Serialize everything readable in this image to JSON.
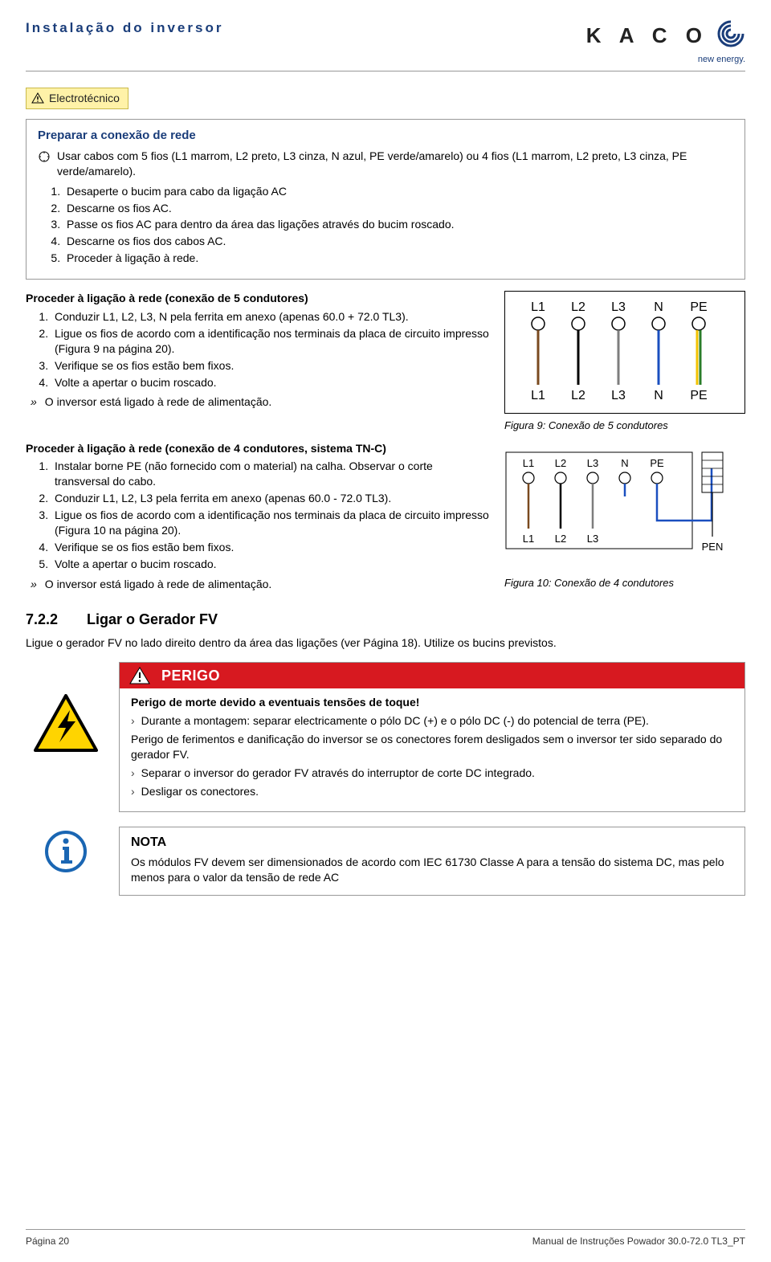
{
  "header": {
    "title": "Instalação do inversor"
  },
  "brand": {
    "name": "K A C O",
    "sub": "new energy."
  },
  "tag": "Electrotécnico",
  "block1": {
    "title": "Preparar a conexão de rede",
    "tool": "Usar cabos com 5 fios (L1 marrom, L2 preto, L3 cinza, N azul, PE verde/amarelo) ou 4 fios (L1 marrom, L2 preto, L3 cinza, PE verde/amarelo).",
    "steps": [
      "Desaperte o bucim para cabo da ligação AC",
      "Descarne os fios AC.",
      "Passe os fios AC para dentro da área das ligações através do bucim roscado.",
      "Descarne os fios dos cabos AC.",
      "Proceder à ligação à rede."
    ]
  },
  "sec5": {
    "title": "Proceder à ligação à rede (conexão de 5 condutores)",
    "steps": [
      "Conduzir L1, L2, L3, N pela ferrita em anexo (apenas 60.0 + 72.0 TL3).",
      "Ligue os fios de acordo com a identificação nos terminais da placa de circuito impresso (Figura 9 na página 20).",
      "Verifique se os fios estão bem fixos.",
      "Volte a apertar o bucim roscado."
    ],
    "result": "O inversor está ligado à rede de alimentação.",
    "diagram": {
      "top": [
        "L1",
        "L2",
        "L3",
        "N",
        "PE"
      ],
      "bottom": [
        "L1",
        "L2",
        "L3",
        "N",
        "PE"
      ],
      "colors": [
        "#7a4a1f",
        "#000000",
        "#7d7d7d",
        "#1a4fbf",
        "#f2c200"
      ],
      "pe_stripe": "#2a7d2a"
    },
    "caption": "Figura 9:  Conexão de 5 condutores"
  },
  "sec4": {
    "title": "Proceder à ligação à rede (conexão de 4 condutores, sistema TN-C)",
    "steps": [
      "Instalar borne PE (não fornecido com o material) na calha. Observar o corte transversal do cabo.",
      "Conduzir L1, L2, L3 pela ferrita em anexo (apenas 60.0 - 72.0 TL3).",
      "Ligue os fios de acordo com a identificação nos terminais da placa de circuito impresso (Figura 10 na página 20).",
      "Verifique se os fios estão bem fixos.",
      "Volte a apertar o bucim roscado."
    ],
    "result": "O inversor está ligado à rede de alimentação.",
    "diagram": {
      "top": [
        "L1",
        "L2",
        "L3",
        "N",
        "PE"
      ],
      "bottom": [
        "L1",
        "L2",
        "L3"
      ],
      "pen_label": "PEN",
      "colors": [
        "#7a4a1f",
        "#000000",
        "#7d7d7d",
        "#1a4fbf",
        "#1a4fbf"
      ]
    },
    "caption": "Figura 10: Conexão de 4 condutores"
  },
  "h2": {
    "num": "7.2.2",
    "title": "Ligar o Gerador FV"
  },
  "intro": "Ligue o gerador FV no lado direito dentro da área das ligações (ver Página 18). Utilize os bucins previstos.",
  "danger": {
    "label": "PERIGO",
    "title": "Perigo de morte devido a eventuais tensões de toque!",
    "line1": "Durante a montagem: separar electricamente o pólo DC (+) e o pólo DC (-) do potencial de terra (PE).",
    "para": "Perigo de ferimentos e danificação do inversor se os conectores forem desligados sem o inversor ter sido separado do gerador FV.",
    "line2": "Separar o inversor do gerador FV através do interruptor de corte DC integrado.",
    "line3": "Desligar os conectores.",
    "colors": {
      "bg": "#d71920",
      "fg": "#ffffff",
      "warn_border": "#000000",
      "warn_fill": "#ffd400"
    }
  },
  "note": {
    "label": "NOTA",
    "text": "Os módulos FV devem ser dimensionados de acordo com IEC 61730 Classe A para a tensão do sistema DC, mas pelo menos para o valor da tensão de rede AC",
    "icon_color": "#1a66b3"
  },
  "footer": {
    "left": "Página 20",
    "right": "Manual de Instruções Powador 30.0-72.0 TL3_PT"
  }
}
